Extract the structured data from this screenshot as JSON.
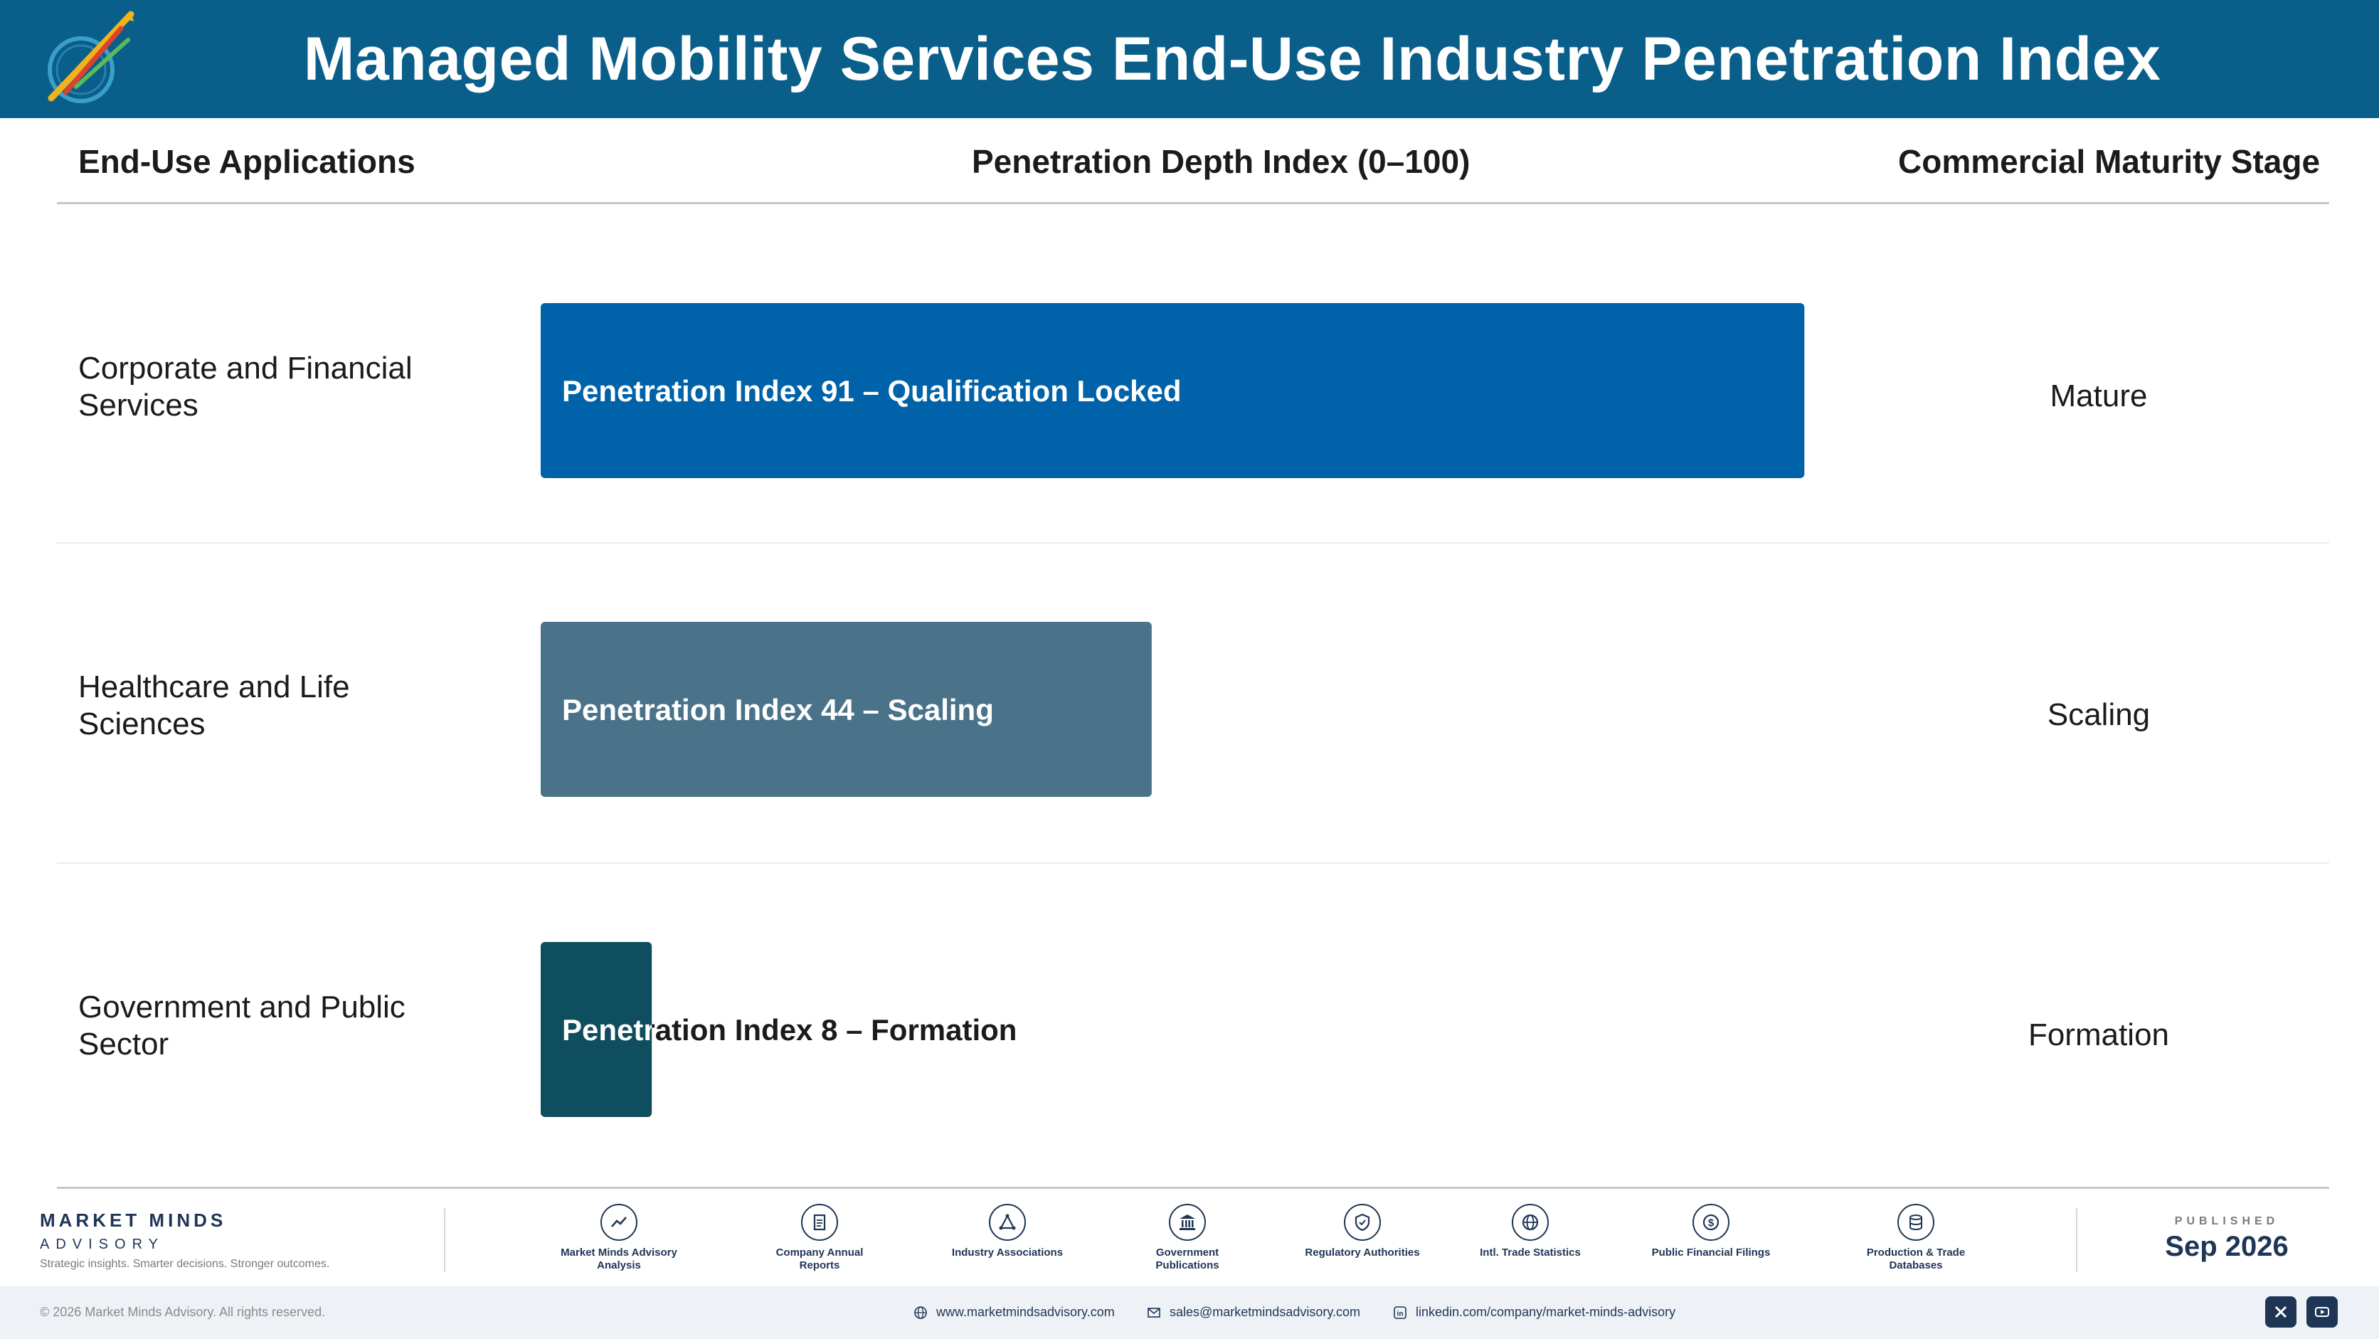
{
  "header": {
    "title": "Managed Mobility Services End-Use Industry Penetration Index"
  },
  "columns": {
    "applications": "End-Use Applications",
    "index": "Penetration Depth Index (0–100)",
    "stage": "Commercial Maturity Stage"
  },
  "rows": [
    {
      "label": "Corporate and Financial Services",
      "bar_label": "Penetration Index 91 – Qualification Locked",
      "stage": "Mature"
    },
    {
      "label": "Healthcare and Life Sciences",
      "bar_label": "Penetration Index 44 – Scaling",
      "stage": "Scaling"
    },
    {
      "label": "Government and Public Sector",
      "bar_label": "Penetration Index 8 – Formation",
      "stage": "Formation"
    }
  ],
  "chart_data": {
    "type": "bar",
    "orientation": "horizontal",
    "title": "Managed Mobility Services End-Use Industry Penetration Index",
    "categories": [
      "Corporate and Financial Services",
      "Healthcare and Life Sciences",
      "Government and Public Sector"
    ],
    "values": [
      91,
      44,
      8
    ],
    "stages": [
      "Mature",
      "Scaling",
      "Formation"
    ],
    "xlim": [
      0,
      100
    ],
    "colors": [
      "#0062a8",
      "#4a738a",
      "#0f4e5e"
    ],
    "grid": false,
    "legend": "none"
  },
  "footer": {
    "brand_name": "MARKET MINDS",
    "brand_sub": "ADVISORY",
    "tagline": "Strategic insights. Smarter decisions. Stronger outcomes.",
    "sources": [
      {
        "label": "Market Minds Advisory Analysis",
        "icon": "trend-icon"
      },
      {
        "label": "Company Annual Reports",
        "icon": "document-icon"
      },
      {
        "label": "Industry Associations",
        "icon": "network-icon"
      },
      {
        "label": "Government Publications",
        "icon": "government-building-icon"
      },
      {
        "label": "Regulatory Authorities",
        "icon": "shield-icon"
      },
      {
        "label": "Intl. Trade Statistics",
        "icon": "globe-icon"
      },
      {
        "label": "Public Financial Filings",
        "icon": "dollar-icon"
      },
      {
        "label": "Production & Trade Databases",
        "icon": "database-icon"
      }
    ],
    "published_label": "PUBLISHED",
    "published_date": "Sep 2026",
    "copyright": "© 2026 Market Minds Advisory. All rights reserved.",
    "website": "www.marketmindsadvisory.com",
    "email": "sales@marketmindsadvisory.com",
    "linkedin": "linkedin.com/company/market-minds-advisory"
  }
}
